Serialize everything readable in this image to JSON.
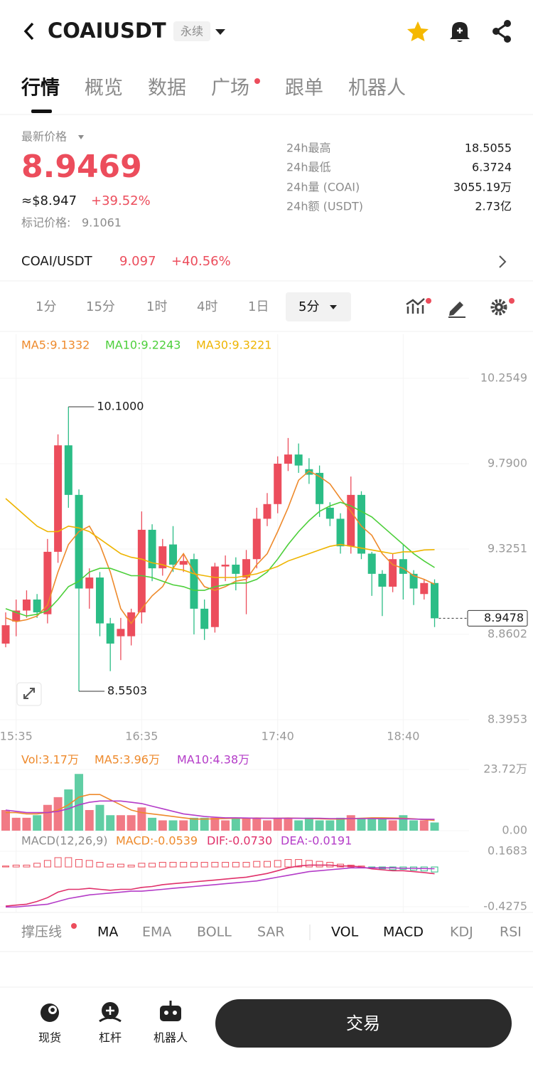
{
  "header": {
    "symbol": "COAIUSDT",
    "tag": "永续"
  },
  "tabs": [
    "行情",
    "概览",
    "数据",
    "广场",
    "跟单",
    "机器人"
  ],
  "price": {
    "label": "最新价格",
    "last": "8.9469",
    "usd": "≈$8.947",
    "change": "+39.52%",
    "mark_label": "标记价格:",
    "mark": "9.1061"
  },
  "stats": [
    {
      "label": "24h最高",
      "value": "18.5055"
    },
    {
      "label": "24h最低",
      "value": "6.3724"
    },
    {
      "label": "24h量 (COAI)",
      "value": "3055.19万"
    },
    {
      "label": "24h额 (USDT)",
      "value": "2.73亿"
    }
  ],
  "spot": {
    "pair": "COAI/USDT",
    "price": "9.097",
    "change": "+40.56%"
  },
  "intervals": [
    "1分",
    "15分",
    "1时",
    "4时",
    "1日",
    "5分"
  ],
  "chart_data": [
    {
      "type": "candlestick",
      "categories": [
        null,
        "15:35",
        null,
        null,
        null,
        null,
        null,
        null,
        null,
        null,
        null,
        null,
        null,
        "16:35",
        null,
        null,
        null,
        null,
        null,
        null,
        null,
        null,
        null,
        null,
        null,
        null,
        "17:40",
        null,
        null,
        null,
        null,
        null,
        null,
        null,
        null,
        null,
        null,
        null,
        "18:40",
        null,
        null,
        null
      ],
      "open": [
        8.81,
        8.93,
        8.99,
        9.05,
        8.97,
        9.31,
        9.89,
        9.62,
        9.11,
        9.17,
        8.92,
        8.85,
        8.85,
        8.98,
        9.43,
        9.22,
        9.35,
        9.24,
        9.27,
        9.0,
        8.9,
        9.23,
        9.24,
        9.17,
        9.27,
        9.49,
        9.57,
        9.79,
        9.84,
        9.76,
        9.74,
        9.55,
        9.49,
        9.34,
        9.62,
        9.3,
        9.19,
        9.12,
        9.27,
        9.19,
        9.08,
        9.14
      ],
      "high": [
        8.98,
        9.05,
        9.1,
        9.08,
        9.38,
        9.95,
        10.1,
        9.65,
        9.22,
        9.2,
        8.95,
        8.95,
        9.0,
        9.53,
        9.46,
        9.38,
        9.45,
        9.3,
        9.3,
        9.05,
        9.25,
        9.29,
        9.28,
        9.32,
        9.55,
        9.63,
        9.83,
        9.93,
        9.9,
        9.82,
        9.78,
        9.58,
        9.52,
        9.72,
        9.64,
        9.31,
        9.21,
        9.3,
        9.35,
        9.21,
        9.16,
        9.16
      ],
      "low": [
        8.79,
        8.85,
        8.95,
        8.95,
        8.92,
        9.25,
        9.55,
        8.5503,
        9.0,
        8.85,
        8.66,
        8.72,
        8.8,
        8.92,
        9.15,
        9.18,
        9.2,
        9.2,
        8.86,
        8.83,
        8.87,
        9.15,
        9.1,
        8.97,
        9.22,
        9.45,
        9.52,
        9.75,
        9.74,
        9.68,
        9.5,
        9.45,
        9.3,
        9.3,
        9.27,
        9.07,
        8.96,
        9.09,
        9.05,
        9.02,
        9.05,
        8.9
      ],
      "close": [
        8.91,
        8.99,
        9.05,
        8.98,
        9.31,
        9.89,
        9.62,
        9.11,
        9.17,
        8.92,
        8.81,
        8.89,
        8.98,
        9.43,
        9.22,
        9.34,
        9.24,
        9.26,
        9.0,
        8.89,
        9.23,
        9.24,
        9.19,
        9.27,
        9.49,
        9.57,
        9.79,
        9.84,
        9.78,
        9.73,
        9.57,
        9.49,
        9.34,
        9.62,
        9.3,
        9.19,
        9.12,
        9.27,
        9.19,
        9.11,
        9.14,
        8.9478
      ],
      "up_color": "#ec4d5c",
      "down_color": "#2bbd86",
      "ylim": [
        8.3953,
        10.2549
      ],
      "yticks": [
        10.2549,
        {
          "value": 9.79,
          "label": "9.7900"
        },
        9.3251,
        8.8602,
        8.3953
      ],
      "series": [
        {
          "name": "MA5:9.1332",
          "color": "#ee8a2c",
          "values": [
            8.95,
            8.93,
            8.94,
            8.96,
            9.02,
            9.2,
            9.35,
            9.42,
            9.45,
            9.35,
            9.2,
            9.0,
            8.92,
            9.0,
            9.07,
            9.12,
            9.22,
            9.3,
            9.2,
            9.12,
            9.1,
            9.12,
            9.15,
            9.16,
            9.24,
            9.3,
            9.42,
            9.55,
            9.7,
            9.75,
            9.72,
            9.68,
            9.6,
            9.53,
            9.45,
            9.4,
            9.3,
            9.24,
            9.22,
            9.18,
            9.16,
            9.1332
          ]
        },
        {
          "name": "MA10:9.2243",
          "color": "#4ccf3a",
          "values": [
            9.0,
            8.98,
            8.96,
            8.97,
            8.99,
            9.05,
            9.12,
            9.15,
            9.2,
            9.22,
            9.22,
            9.2,
            9.18,
            9.18,
            9.17,
            9.15,
            9.13,
            9.12,
            9.1,
            9.1,
            9.12,
            9.13,
            9.14,
            9.14,
            9.16,
            9.2,
            9.27,
            9.35,
            9.42,
            9.48,
            9.53,
            9.56,
            9.58,
            9.56,
            9.53,
            9.5,
            9.45,
            9.4,
            9.35,
            9.3,
            9.26,
            9.2243
          ]
        },
        {
          "name": "MA30:9.3221",
          "color": "#eeb400",
          "values": [
            9.6,
            9.55,
            9.5,
            9.45,
            9.42,
            9.42,
            9.45,
            9.44,
            9.42,
            9.38,
            9.34,
            9.3,
            9.28,
            9.27,
            9.25,
            9.24,
            9.22,
            9.21,
            9.19,
            9.18,
            9.17,
            9.17,
            9.17,
            9.18,
            9.19,
            9.21,
            9.23,
            9.26,
            9.28,
            9.3,
            9.32,
            9.34,
            9.35,
            9.34,
            9.33,
            9.32,
            9.31,
            9.3,
            9.31,
            9.31,
            9.32,
            9.3221
          ]
        }
      ],
      "annotations": [
        {
          "value": 10.1,
          "label": "10.1000"
        },
        {
          "value": 8.5503,
          "label": "8.5503"
        }
      ],
      "last_price": 8.9478
    },
    {
      "type": "volume",
      "ylim": [
        0,
        23.72
      ],
      "yticks": [
        {
          "value": 23.72,
          "label": "23.72万"
        },
        {
          "value": 0,
          "label": "0.00"
        }
      ],
      "series": [
        {
          "name": "Vol:3.17万",
          "mark": "bar",
          "color": "#ee8a2c",
          "values": [
            8,
            5,
            5,
            6,
            10,
            13,
            16,
            22,
            8,
            10,
            6,
            6,
            6,
            9,
            5,
            4,
            4,
            4,
            5,
            5,
            5,
            4,
            5,
            5,
            5,
            4,
            5,
            5,
            4,
            5,
            4,
            4,
            5,
            6,
            5,
            5,
            5,
            4,
            6,
            4,
            4,
            3.17
          ]
        },
        {
          "name": "MA5:3.96万",
          "mark": "line",
          "color": "#ee8a2c",
          "values": [
            7,
            7,
            6.5,
            6.5,
            7,
            8,
            10,
            13,
            14,
            14,
            12,
            10,
            8,
            7,
            6.5,
            6,
            5.5,
            5,
            4.5,
            4.5,
            4.6,
            4.7,
            4.8,
            4.8,
            4.9,
            4.8,
            4.8,
            4.9,
            4.8,
            4.7,
            4.6,
            4.5,
            4.5,
            4.6,
            4.8,
            5,
            5,
            4.9,
            4.8,
            4.6,
            4.3,
            3.96
          ]
        },
        {
          "name": "MA10:4.38万",
          "mark": "line",
          "color": "#b43cc8",
          "values": [
            8,
            7.5,
            7,
            7,
            7,
            7.5,
            8.5,
            10,
            11,
            11.5,
            11.5,
            11.5,
            11,
            10.5,
            9.5,
            8.5,
            7.5,
            6.5,
            6,
            5.5,
            5.2,
            5,
            5,
            4.9,
            4.8,
            4.8,
            4.8,
            4.8,
            4.8,
            4.8,
            4.8,
            4.7,
            4.7,
            4.7,
            4.7,
            4.7,
            4.6,
            4.6,
            4.6,
            4.5,
            4.45,
            4.38
          ]
        }
      ]
    },
    {
      "type": "macd",
      "title": "MACD(12,26,9)",
      "ylim": [
        -0.4275,
        0.1683
      ],
      "yticks": [
        0.1683,
        -0.4275
      ],
      "series": [
        {
          "name": "MACD:-0.0539",
          "mark": "bar",
          "color": "#ee8a2c",
          "values": [
            0.01,
            0.02,
            0.02,
            0.04,
            0.07,
            0.1,
            0.1,
            0.08,
            0.07,
            0.05,
            0.03,
            0.03,
            0.02,
            0.04,
            0.04,
            0.05,
            0.05,
            0.05,
            0.05,
            0.05,
            0.05,
            0.05,
            0.05,
            0.05,
            0.06,
            0.06,
            0.07,
            0.08,
            0.08,
            0.07,
            0.06,
            0.05,
            0.03,
            0.02,
            0.01,
            -0.01,
            -0.02,
            -0.03,
            -0.025,
            -0.035,
            -0.043,
            -0.0539
          ]
        },
        {
          "name": "DIF:-0.0730",
          "mark": "line",
          "color": "#e0306a",
          "values": [
            -0.42,
            -0.41,
            -0.4,
            -0.37,
            -0.33,
            -0.27,
            -0.24,
            -0.24,
            -0.23,
            -0.24,
            -0.25,
            -0.24,
            -0.24,
            -0.22,
            -0.21,
            -0.19,
            -0.18,
            -0.17,
            -0.16,
            -0.15,
            -0.14,
            -0.13,
            -0.12,
            -0.11,
            -0.09,
            -0.07,
            -0.04,
            -0.01,
            0.01,
            0.02,
            0.02,
            0.02,
            0.01,
            0.01,
            0.0,
            -0.02,
            -0.03,
            -0.04,
            -0.04,
            -0.05,
            -0.06,
            -0.073
          ]
        },
        {
          "name": "DEA:-0.0191",
          "mark": "line",
          "color": "#b43cc8",
          "values": [
            -0.43,
            -0.43,
            -0.42,
            -0.41,
            -0.4,
            -0.37,
            -0.34,
            -0.32,
            -0.3,
            -0.29,
            -0.28,
            -0.27,
            -0.26,
            -0.26,
            -0.25,
            -0.24,
            -0.23,
            -0.22,
            -0.21,
            -0.2,
            -0.19,
            -0.18,
            -0.17,
            -0.16,
            -0.15,
            -0.13,
            -0.11,
            -0.09,
            -0.07,
            -0.05,
            -0.04,
            -0.03,
            -0.02,
            -0.01,
            -0.01,
            -0.01,
            -0.01,
            -0.01,
            -0.015,
            -0.015,
            -0.017,
            -0.0191
          ]
        }
      ]
    }
  ],
  "indicators": [
    "撑压线",
    "MA",
    "EMA",
    "BOLL",
    "SAR",
    "VOL",
    "MACD",
    "KDJ",
    "RSI"
  ],
  "nav": [
    "现货",
    "杠杆",
    "机器人"
  ],
  "trade_button": "交易"
}
